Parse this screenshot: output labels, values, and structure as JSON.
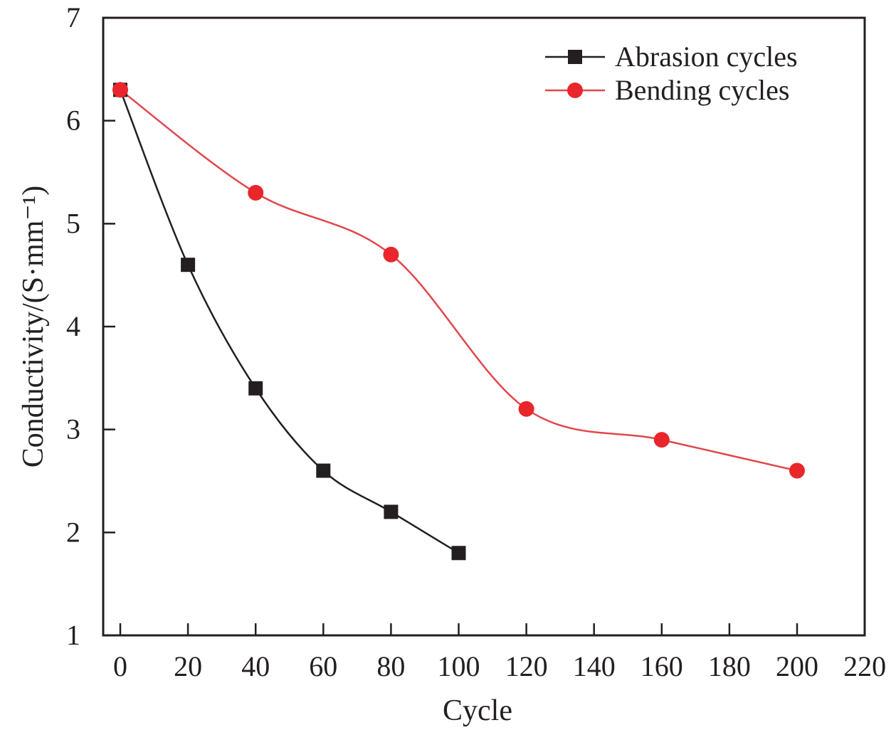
{
  "chart_data": {
    "type": "line",
    "title": "",
    "xlabel": "Cycle",
    "ylabel": "Conductivity/(S·mm⁻¹)",
    "xlim": [
      -5,
      220
    ],
    "ylim": [
      1,
      7
    ],
    "xticks": [
      0,
      20,
      40,
      60,
      80,
      100,
      120,
      140,
      160,
      180,
      200,
      220
    ],
    "xtick_labels": [
      "0",
      "20",
      "40",
      "60",
      "80",
      "100",
      "120",
      "140",
      "160",
      "180",
      "200",
      "220"
    ],
    "yticks": [
      1,
      2,
      3,
      4,
      5,
      6,
      7
    ],
    "ytick_labels": [
      "1",
      "2",
      "3",
      "4",
      "5",
      "6",
      "7"
    ],
    "grid": false,
    "legend_position": "top-right",
    "series": [
      {
        "name": "Abrasion cycles",
        "marker": "square",
        "color": "#231f20",
        "x": [
          0,
          20,
          40,
          60,
          80,
          100
        ],
        "y": [
          6.3,
          4.6,
          3.4,
          2.6,
          2.2,
          1.8
        ]
      },
      {
        "name": "Bending cycles",
        "marker": "circle",
        "color": "#e8262b",
        "line_color": "#e0474c",
        "x": [
          0,
          40,
          80,
          120,
          160,
          200
        ],
        "y": [
          6.3,
          5.3,
          4.7,
          3.2,
          2.9,
          2.6
        ]
      }
    ]
  }
}
